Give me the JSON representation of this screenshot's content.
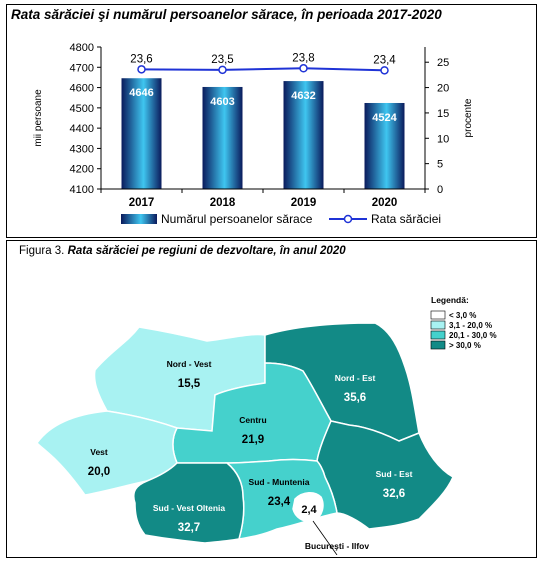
{
  "chart_data": [
    {
      "type": "bar",
      "title": "Rata sărăciei şi numărul persoanelor sărace, în perioada 2017-2020",
      "categories": [
        "2017",
        "2018",
        "2019",
        "2020"
      ],
      "series": [
        {
          "name": "Numărul persoanelor sărace",
          "type": "bar",
          "axis": "left",
          "values": [
            4646,
            4603,
            4632,
            4524
          ]
        },
        {
          "name": "Rata sărăciei",
          "type": "line",
          "axis": "right",
          "values": [
            23.6,
            23.5,
            23.8,
            23.4
          ]
        }
      ],
      "bar_labels": [
        "4646",
        "4603",
        "4632",
        "4524"
      ],
      "line_labels": [
        "23,6",
        "23,5",
        "23,8",
        "23,4"
      ],
      "ylabel": "mii persoane",
      "y2label": "procente",
      "ylim": [
        4100,
        4800
      ],
      "y2lim": [
        0,
        28
      ],
      "yticks": [
        "4100",
        "4200",
        "4300",
        "4400",
        "4500",
        "4600",
        "4700",
        "4800"
      ],
      "y2ticks": [
        "0",
        "5",
        "10",
        "15",
        "20",
        "25"
      ],
      "grid": false,
      "legend": "bottom",
      "colors": {
        "bar_dark": "#0a1a5c",
        "bar_light": "#3fc6f0",
        "line": "#1f33d6"
      }
    },
    {
      "type": "map",
      "figure_label": "Figura 3.",
      "title": "Rata sărăciei pe regiuni de dezvoltare, în anul 2020",
      "legend_title": "Legendă:",
      "legend": [
        {
          "label": "< 3,0 %",
          "color": "#ffffff"
        },
        {
          "label": "3,1 - 20,0 %",
          "color": "#a8f2f2"
        },
        {
          "label": "20,1 - 30,0 %",
          "color": "#45d1cc"
        },
        {
          "label": "> 30,0 %",
          "color": "#128a86"
        }
      ],
      "regions": [
        {
          "name": "Nord - Vest",
          "value": "15,5",
          "value_num": 15.5
        },
        {
          "name": "Nord - Est",
          "value": "35,6",
          "value_num": 35.6
        },
        {
          "name": "Centru",
          "value": "21,9",
          "value_num": 21.9
        },
        {
          "name": "Vest",
          "value": "20,0",
          "value_num": 20.0
        },
        {
          "name": "Sud - Est",
          "value": "32,6",
          "value_num": 32.6
        },
        {
          "name": "Sud - Muntenia",
          "value": "23,4",
          "value_num": 23.4
        },
        {
          "name": "Sud - Vest Oltenia",
          "value": "32,7",
          "value_num": 32.7
        },
        {
          "name": "Bucureşti - Ilfov",
          "value": "2,4",
          "value_num": 2.4
        }
      ]
    }
  ]
}
